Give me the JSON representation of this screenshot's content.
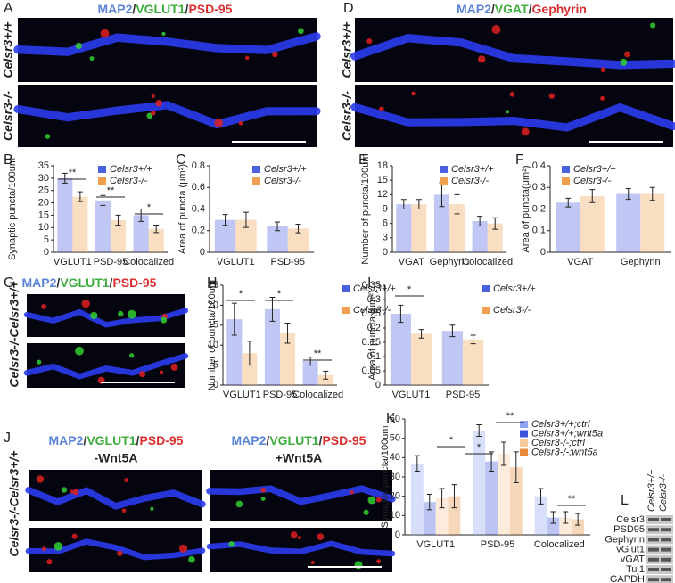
{
  "image_panels": [
    {
      "letter": "A",
      "legends": [
        [
          {
            "text": "MAP2",
            "color": "#5b86d6"
          },
          {
            "text": "/",
            "color": "#333333"
          },
          {
            "text": "VGLUT1",
            "color": "#3fae3f"
          },
          {
            "text": "/",
            "color": "#333333"
          },
          {
            "text": "PSD-95",
            "color": "#d93030"
          }
        ]
      ],
      "row_labels": [
        "Celsr3+/+",
        "Celsr3-/-"
      ]
    },
    {
      "letter": "D",
      "legends": [
        [
          {
            "text": "MAP2",
            "color": "#5b86d6"
          },
          {
            "text": "/",
            "color": "#333333"
          },
          {
            "text": "VGAT",
            "color": "#3fae3f"
          },
          {
            "text": "/",
            "color": "#333333"
          },
          {
            "text": "Gephyrin",
            "color": "#d93030"
          }
        ]
      ],
      "row_labels": [
        "Celsr3+/+",
        "Celsr3-/-"
      ]
    },
    {
      "letter": "G",
      "legends": [
        [
          {
            "text": "MAP2",
            "color": "#5b86d6"
          },
          {
            "text": "/",
            "color": "#333333"
          },
          {
            "text": "VGLUT1",
            "color": "#3fae3f"
          },
          {
            "text": "/",
            "color": "#333333"
          },
          {
            "text": "PSD-95",
            "color": "#d93030"
          }
        ]
      ],
      "row_labels": [
        "Celsr3-/-Celsr3+/+"
      ]
    },
    {
      "letter": "J",
      "legends": [
        [
          {
            "text": "MAP2",
            "color": "#5b86d6"
          },
          {
            "text": "/",
            "color": "#333333"
          },
          {
            "text": "VGLUT1",
            "color": "#3fae3f"
          },
          {
            "text": "/",
            "color": "#333333"
          },
          {
            "text": "PSD-95",
            "color": "#d93030"
          }
        ],
        [
          {
            "text": "MAP2",
            "color": "#5b86d6"
          },
          {
            "text": "/",
            "color": "#333333"
          },
          {
            "text": "VGLUT1",
            "color": "#3fae3f"
          },
          {
            "text": "/",
            "color": "#333333"
          },
          {
            "text": "PSD-95",
            "color": "#d93030"
          }
        ]
      ],
      "subtitles": [
        "-Wnt5A",
        "+Wnt5A"
      ],
      "row_labels": [
        "Celsr3-/-Celsr3+/+"
      ]
    }
  ],
  "chart_data": [
    {
      "type": "bar",
      "letter": "B",
      "y_label": "Synaptic puncta/100um",
      "categories": [
        "VGLUT1",
        "PSD-95",
        "Colocalized"
      ],
      "series": [
        {
          "name": "Celsr3+/+",
          "color": "#4a5fe0",
          "values": [
            30,
            21,
            15
          ],
          "errors": [
            2,
            2,
            2.5
          ]
        },
        {
          "name": "Celsr3-/-",
          "color": "#f0a050",
          "values": [
            22.5,
            13,
            9.5
          ],
          "errors": [
            2,
            2,
            1.5
          ]
        }
      ],
      "ylim": [
        0,
        35
      ],
      "yticks": [
        0,
        5,
        10,
        15,
        20,
        25,
        30,
        35
      ],
      "annotations": [
        "**",
        "**",
        "*"
      ]
    },
    {
      "type": "bar",
      "letter": "C",
      "y_label": "Area of puncta (μm²)",
      "categories": [
        "VGLUT1",
        "PSD-95"
      ],
      "series": [
        {
          "name": "Celsr3+/+",
          "color": "#4a5fe0",
          "values": [
            0.3,
            0.24
          ],
          "errors": [
            0.05,
            0.04
          ]
        },
        {
          "name": "Celsr3-/-",
          "color": "#f0a050",
          "values": [
            0.3,
            0.22
          ],
          "errors": [
            0.07,
            0.04
          ]
        }
      ],
      "ylim": [
        0,
        0.8
      ],
      "yticks": [
        0,
        0.2,
        0.4,
        0.6,
        0.8
      ],
      "annotations": []
    },
    {
      "type": "bar",
      "letter": "E",
      "y_label": "Number of puncta/100um",
      "categories": [
        "VGAT",
        "Gephyrin",
        "Colocalized"
      ],
      "series": [
        {
          "name": "Celsr3+/+",
          "color": "#4a5fe0",
          "values": [
            10,
            12,
            6.5
          ],
          "errors": [
            1,
            2.5,
            1
          ]
        },
        {
          "name": "Celsr3-/-",
          "color": "#f0a050",
          "values": [
            10,
            10,
            6
          ],
          "errors": [
            1,
            2,
            1.2
          ]
        }
      ],
      "ylim": [
        0,
        18
      ],
      "yticks": [
        0,
        3,
        6,
        9,
        12,
        15,
        18
      ],
      "annotations": []
    },
    {
      "type": "bar",
      "letter": "F",
      "y_label": "Area of puncta(μm²)",
      "categories": [
        "VGAT",
        "Gephyrin"
      ],
      "series": [
        {
          "name": "Celsr3+/+",
          "color": "#4a5fe0",
          "values": [
            0.23,
            0.27
          ],
          "errors": [
            0.02,
            0.025
          ]
        },
        {
          "name": "Celsr3-/-",
          "color": "#f0a050",
          "values": [
            0.26,
            0.27
          ],
          "errors": [
            0.03,
            0.03
          ]
        }
      ],
      "ylim": [
        0,
        0.4
      ],
      "yticks": [
        0,
        0.1,
        0.2,
        0.3,
        0.4
      ],
      "annotations": []
    },
    {
      "type": "bar",
      "letter": "H",
      "y_label": "Number of puncta/100um",
      "categories": [
        "VGLUT1",
        "PSD-95",
        "Colocalized"
      ],
      "series": [
        {
          "name": "Celsr3+/+",
          "color": "#4a5fe0",
          "values": [
            16.5,
            19,
            6
          ],
          "errors": [
            4,
            3,
            1
          ]
        },
        {
          "name": "Celsr3-/-",
          "color": "#f0a050",
          "values": [
            8,
            13,
            2.5
          ],
          "errors": [
            3,
            2.5,
            1
          ]
        }
      ],
      "ylim": [
        0,
        25
      ],
      "yticks": [
        0,
        5,
        10,
        15,
        20,
        25
      ],
      "annotations": [
        "*",
        "*",
        "**"
      ]
    },
    {
      "type": "bar",
      "letter": "I",
      "y_label": "Area of puncta (μm²)",
      "categories": [
        "VGLUT1",
        "PSD-95"
      ],
      "series": [
        {
          "name": "Celsr3+/+",
          "color": "#4a5fe0",
          "values": [
            0.25,
            0.19
          ],
          "errors": [
            0.03,
            0.02
          ]
        },
        {
          "name": "Celsr3-/-",
          "color": "#f0a050",
          "values": [
            0.18,
            0.16
          ],
          "errors": [
            0.015,
            0.015
          ]
        }
      ],
      "ylim": [
        0,
        0.35
      ],
      "yticks": [
        0,
        0.05,
        0.1,
        0.15,
        0.2,
        0.25,
        0.3,
        0.35
      ],
      "annotations": [
        "*"
      ]
    },
    {
      "type": "bar",
      "letter": "K",
      "y_label": "Synaptic puncta/100um",
      "categories": [
        "VGLUT1",
        "PSD-95",
        "Colocalized"
      ],
      "series": [
        {
          "name": "Celsr3+/+;ctrl",
          "color": "#8fa4f0",
          "values": [
            37,
            54,
            20
          ],
          "errors": [
            4,
            3,
            4
          ]
        },
        {
          "name": "Celsr3+/+;wnt5a",
          "color": "#3f55de",
          "values": [
            17,
            38,
            9
          ],
          "errors": [
            4,
            5,
            3
          ]
        },
        {
          "name": "Celsr3-/-;ctrl",
          "color": "#f8c99a",
          "values": [
            19,
            42,
            9
          ],
          "errors": [
            5,
            6,
            3
          ]
        },
        {
          "name": "Celsr3-/-;wnt5a",
          "color": "#e98c3a",
          "values": [
            20,
            35,
            8
          ],
          "errors": [
            6,
            8,
            3
          ]
        }
      ],
      "ylim": [
        0,
        60
      ],
      "yticks": [
        0,
        10,
        20,
        30,
        40,
        50,
        60
      ],
      "annotations": [
        "*",
        "**",
        "*",
        "**"
      ]
    }
  ],
  "blot": {
    "letter": "L",
    "columns": [
      "Celsr3+/+",
      "Celsr3-/-"
    ],
    "rows": [
      "Celsr3",
      "PSD95",
      "Gephyrin",
      "vGlut1",
      "vGAT",
      "Tuj1",
      "GAPDH"
    ]
  }
}
